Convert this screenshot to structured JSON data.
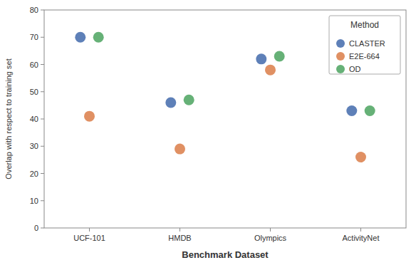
{
  "chart_data": {
    "type": "scatter",
    "categories": [
      "UCF-101",
      "HMDB",
      "Olympics",
      "ActivityNet"
    ],
    "series": [
      {
        "name": "CLASTER",
        "color": "#4c72b0",
        "values": [
          70,
          46,
          62,
          43
        ]
      },
      {
        "name": "E2E-664",
        "color": "#dd8452",
        "values": [
          41,
          29,
          58,
          26
        ]
      },
      {
        "name": "OD",
        "color": "#55a868",
        "values": [
          70,
          47,
          63,
          43
        ]
      }
    ],
    "x_label": "Benchmark Dataset",
    "y_label": "Overlap with respect to training set",
    "legend_title": "Method",
    "ylim": [
      0,
      80
    ],
    "yticks": [
      0,
      10,
      20,
      30,
      40,
      50,
      60,
      70,
      80
    ],
    "grid": false,
    "legend": "upper right"
  }
}
